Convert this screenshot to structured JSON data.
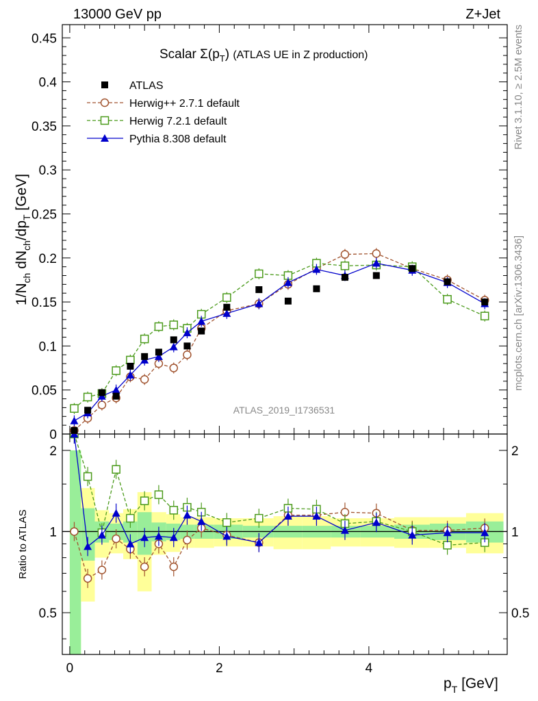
{
  "header": {
    "left": "13000 GeV pp",
    "right": "Z+Jet"
  },
  "side_labels": {
    "top": "Rivet 3.1.10, ≥ 2.5M events",
    "bottom": "mcplots.cern.ch [arXiv:1306.3436]"
  },
  "chart_data": {
    "type": "scatter",
    "title": "Scalar Σ(p_T) (ATLAS UE in Z production)",
    "watermark": "ATLAS_2019_I1736531",
    "xlabel": "p_T [GeV]",
    "ylabel": "1/N_ch dN_ch/dp_T [GeV]",
    "ratio_ylabel": "Ratio to ATLAS",
    "xlim": [
      -0.1,
      5.85
    ],
    "ylim": [
      0,
      0.465
    ],
    "ratio_ylim": [
      0.35,
      2.3
    ],
    "x_ticks": [
      "0",
      "2",
      "4"
    ],
    "y_ticks": [
      "0",
      "0.05",
      "0.1",
      "0.15",
      "0.2",
      "0.25",
      "0.3",
      "0.35",
      "0.4",
      "0.45"
    ],
    "ratio_y_ticks": [
      "0.5",
      "1",
      "2"
    ],
    "x": [
      0.06,
      0.24,
      0.43,
      0.62,
      0.81,
      1.0,
      1.19,
      1.39,
      1.57,
      1.76,
      2.1,
      2.53,
      2.92,
      3.3,
      3.68,
      4.1,
      4.58,
      5.05,
      5.55
    ],
    "data": {
      "name": "ATLAS",
      "values": [
        0.004,
        0.027,
        0.047,
        0.043,
        0.077,
        0.088,
        0.093,
        0.107,
        0.1,
        0.117,
        0.144,
        0.164,
        0.151,
        0.165,
        0.178,
        0.18,
        0.188,
        0.173,
        0.15
      ],
      "band_inner": [
        1.0,
        0.22,
        0.09,
        0.07,
        0.09,
        0.18,
        0.08,
        0.07,
        0.06,
        0.06,
        0.06,
        0.05,
        0.05,
        0.05,
        0.05,
        0.05,
        0.06,
        0.07,
        0.09
      ],
      "band_outer": [
        1.0,
        0.45,
        0.2,
        0.17,
        0.21,
        0.4,
        0.18,
        0.16,
        0.13,
        0.13,
        0.12,
        0.12,
        0.14,
        0.14,
        0.12,
        0.12,
        0.13,
        0.13,
        0.17
      ]
    },
    "series": [
      {
        "name": "Herwig++ 2.7.1 default",
        "color": "#a0522d",
        "marker": "open-circle",
        "dashed": true,
        "values": [
          0.004,
          0.018,
          0.033,
          0.041,
          0.065,
          0.062,
          0.08,
          0.075,
          0.09,
          0.12,
          0.14,
          0.148,
          0.17,
          0.188,
          0.204,
          0.205,
          0.188,
          0.175,
          0.152
        ],
        "ratio": [
          1.0,
          0.67,
          0.72,
          0.94,
          0.86,
          0.74,
          0.9,
          0.74,
          0.93,
          1.03,
          0.97,
          0.91,
          1.15,
          1.15,
          1.18,
          1.17,
          1.01,
          1.01,
          1.03
        ]
      },
      {
        "name": "Herwig 7.2.1 default",
        "color": "#4a9a1a",
        "marker": "open-square",
        "dashed": true,
        "values": [
          0.029,
          0.042,
          0.046,
          0.072,
          0.084,
          0.108,
          0.122,
          0.124,
          0.12,
          0.136,
          0.155,
          0.182,
          0.18,
          0.194,
          0.191,
          0.192,
          0.19,
          0.153,
          0.134
        ],
        "ratio": [
          5.0,
          1.6,
          0.99,
          1.7,
          1.12,
          1.3,
          1.37,
          1.2,
          1.23,
          1.18,
          1.08,
          1.12,
          1.22,
          1.21,
          1.07,
          1.09,
          1.0,
          0.89,
          0.91
        ]
      },
      {
        "name": "Pythia 8.308 default",
        "color": "#0000cc",
        "marker": "filled-triangle",
        "dashed": false,
        "values": [
          0.015,
          0.024,
          0.043,
          0.05,
          0.067,
          0.084,
          0.088,
          0.099,
          0.115,
          0.128,
          0.137,
          0.148,
          0.172,
          0.187,
          0.18,
          0.194,
          0.186,
          0.172,
          0.148
        ],
        "ratio": [
          5.0,
          0.88,
          0.97,
          1.17,
          0.9,
          0.95,
          0.96,
          0.95,
          1.15,
          1.09,
          0.96,
          0.91,
          1.14,
          1.14,
          1.01,
          1.08,
          0.97,
          0.99,
          0.99
        ]
      }
    ]
  }
}
